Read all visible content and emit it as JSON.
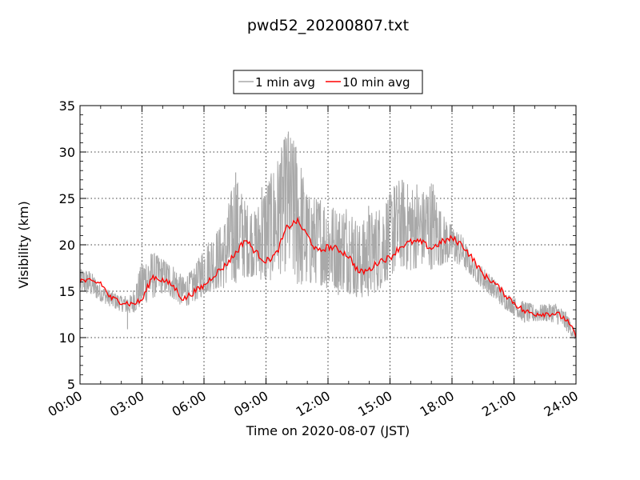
{
  "chart_data": {
    "type": "line",
    "title": "pwd52_20200807.txt",
    "xlabel": "Time on 2020-08-07 (JST)",
    "ylabel": "Visibility (km)",
    "xlim": [
      "00:00",
      "24:00"
    ],
    "ylim": [
      5,
      35
    ],
    "x_ticks": [
      "00:00",
      "03:00",
      "06:00",
      "09:00",
      "12:00",
      "15:00",
      "18:00",
      "21:00",
      "24:00"
    ],
    "y_ticks": [
      5,
      10,
      15,
      20,
      25,
      30,
      35
    ],
    "grid": true,
    "legend": {
      "placement": "top-center, above plot",
      "entries": [
        "1 min avg",
        "10 min avg"
      ]
    },
    "series": [
      {
        "name": "1 min avg",
        "color": "#a9a9a9",
        "band": {
          "x": [
            "00:00",
            "00:30",
            "01:00",
            "01:30",
            "02:00",
            "02:30",
            "03:00",
            "03:30",
            "04:00",
            "04:30",
            "05:00",
            "05:30",
            "06:00",
            "06:30",
            "07:00",
            "07:30",
            "08:00",
            "08:30",
            "09:00",
            "09:30",
            "10:00",
            "10:30",
            "11:00",
            "11:30",
            "12:00",
            "12:30",
            "13:00",
            "13:30",
            "14:00",
            "14:30",
            "15:00",
            "15:30",
            "16:00",
            "16:30",
            "17:00",
            "17:30",
            "18:00",
            "18:30",
            "19:00",
            "19:30",
            "20:00",
            "20:30",
            "21:00",
            "21:30",
            "22:00",
            "22:30",
            "23:00",
            "23:30",
            "24:00"
          ],
          "low": [
            14.8,
            14.6,
            13.9,
            13.3,
            12.8,
            12.5,
            13.4,
            14.2,
            14.8,
            14.2,
            13.2,
            13.8,
            14.6,
            15.2,
            15.3,
            15.8,
            16.5,
            16.6,
            15.8,
            16.6,
            17.2,
            15.5,
            15.6,
            15.9,
            15.2,
            15.3,
            14.8,
            14.2,
            14.4,
            15.2,
            16.5,
            17.6,
            17.1,
            17.8,
            17.3,
            17.8,
            18.2,
            17.6,
            16.5,
            15.2,
            14.3,
            13.2,
            12.5,
            11.6,
            11.7,
            11.8,
            11.6,
            10.8,
            9.6
          ],
          "high": [
            17.4,
            17.2,
            15.6,
            15.0,
            14.5,
            14.6,
            18.2,
            19.2,
            18.5,
            17.8,
            16.5,
            17.4,
            19.8,
            21.2,
            22.5,
            27.6,
            24.6,
            23.5,
            26.6,
            28.8,
            32.2,
            30.8,
            25.3,
            24.9,
            24.7,
            23.6,
            24.5,
            22.0,
            23.4,
            24.0,
            25.5,
            27.2,
            26.3,
            25.5,
            26.8,
            23.4,
            22.0,
            21.0,
            18.3,
            17.6,
            16.4,
            15.0,
            14.3,
            13.9,
            13.5,
            13.6,
            13.7,
            12.8,
            10.8
          ]
        },
        "spikes": [
          {
            "x": "02:18",
            "y": 10.9
          },
          {
            "x": "07:25",
            "y": 21.2
          },
          {
            "x": "07:32",
            "y": 27.8
          },
          {
            "x": "08:48",
            "y": 26.2
          },
          {
            "x": "09:42",
            "y": 28.8
          },
          {
            "x": "10:05",
            "y": 32.2
          },
          {
            "x": "10:22",
            "y": 30.5
          },
          {
            "x": "11:38",
            "y": 24.8
          },
          {
            "x": "12:30",
            "y": 14.6
          },
          {
            "x": "13:58",
            "y": 24.2
          },
          {
            "x": "15:12",
            "y": 26.3
          },
          {
            "x": "16:18",
            "y": 26.5
          },
          {
            "x": "17:05",
            "y": 26.5
          },
          {
            "x": "17:58",
            "y": 22.2
          }
        ]
      },
      {
        "name": "10 min avg",
        "color": "#ff0000",
        "x": [
          "00:00",
          "00:30",
          "01:00",
          "01:30",
          "02:00",
          "02:30",
          "03:00",
          "03:30",
          "04:00",
          "04:30",
          "05:00",
          "05:30",
          "06:00",
          "06:30",
          "07:00",
          "07:30",
          "08:00",
          "08:30",
          "09:00",
          "09:30",
          "10:00",
          "10:30",
          "11:00",
          "11:30",
          "12:00",
          "12:30",
          "13:00",
          "13:30",
          "14:00",
          "14:30",
          "15:00",
          "15:30",
          "16:00",
          "16:30",
          "17:00",
          "17:30",
          "18:00",
          "18:30",
          "19:00",
          "19:30",
          "20:00",
          "20:30",
          "21:00",
          "21:30",
          "22:00",
          "22:30",
          "23:00",
          "23:30",
          "24:00"
        ],
        "values": [
          16.2,
          16.0,
          15.9,
          14.2,
          13.9,
          13.6,
          14.0,
          16.6,
          16.2,
          15.6,
          14.1,
          14.9,
          15.6,
          16.8,
          17.7,
          19.0,
          20.6,
          19.2,
          18.2,
          19.0,
          21.8,
          22.6,
          21.0,
          19.2,
          19.8,
          19.5,
          18.8,
          17.0,
          17.3,
          18.3,
          18.6,
          19.8,
          20.3,
          20.3,
          19.6,
          20.3,
          20.7,
          20.0,
          18.5,
          16.8,
          16.0,
          14.8,
          13.8,
          12.8,
          12.6,
          12.6,
          12.6,
          12.0,
          10.2
        ]
      }
    ]
  }
}
